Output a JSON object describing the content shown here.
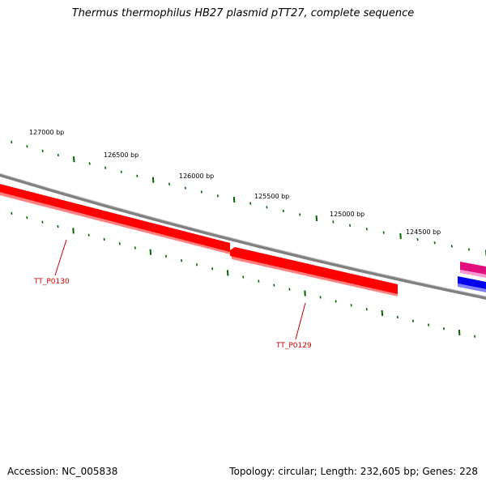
{
  "title": "Thermus thermophilus HB27 plasmid pTT27, complete sequence",
  "ruler_labels": [
    "127000 bp",
    "126500 bp",
    "126000 bp",
    "125500 bp",
    "125000 bp",
    "124500 bp"
  ],
  "genes": [
    {
      "label": "TT_P0130",
      "color": "#ff0000"
    },
    {
      "label": "TT_P0129",
      "color": "#ff0000"
    }
  ],
  "edge_features": [
    {
      "name": "magenta-feature",
      "color": "#e0117f"
    },
    {
      "name": "blue-feature",
      "color": "#0000ee"
    }
  ],
  "colors": {
    "backbone": "#808080",
    "ticks": "#006400",
    "gene": "#ff0000",
    "gene_label": "#cc0000"
  },
  "footer": {
    "accession": "Accession: NC_005838",
    "summary": "Topology: circular; Length: 232,605 bp; Genes: 228"
  }
}
